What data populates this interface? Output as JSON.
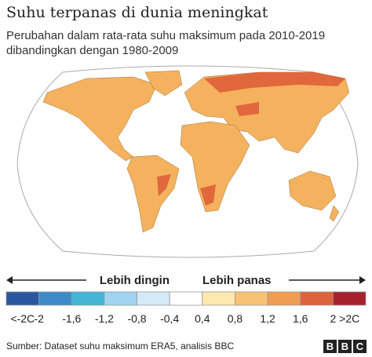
{
  "title": "Suhu terpanas di dunia meningkat",
  "subtitle": [
    "Perubahan dalam rata-rata suhu maksimum pada 2010-2019",
    "dibandingkan dengan 1980-2009"
  ],
  "legend": {
    "colder_label": "Lebih dingin",
    "warmer_label": "Lebih panas",
    "colors": [
      "#2b56a0",
      "#3e8bc7",
      "#45b5d6",
      "#9fd4ef",
      "#d4eaf7",
      "#ffffff",
      "#fde8ad",
      "#f8c274",
      "#f09c52",
      "#de633b",
      "#a6212d"
    ],
    "low_end": "<-2C",
    "high_end": ">2C",
    "tick_labels": [
      "-2",
      "-1,6",
      "-1,2",
      "-0,8",
      "-0,4",
      "0,4",
      "0,8",
      "1,2",
      "1,6",
      "2"
    ]
  },
  "source": "Sumber: Dataset suhu maksimum ERA5, analisis BBC",
  "logo": [
    "B",
    "B",
    "C"
  ]
}
